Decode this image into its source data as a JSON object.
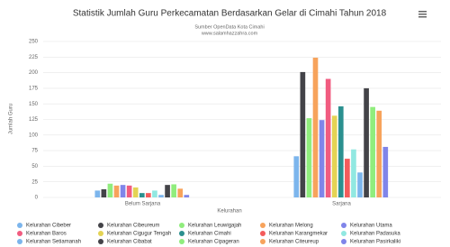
{
  "chart_data": {
    "type": "bar",
    "title": "Statistik Jumlah Guru Perkecamatan Berdasarkan Gelar di Cimahi Tahun 2018",
    "subtitle": [
      "Sumber OpenData Kota Cimahi",
      "www.salamhazzahra.com"
    ],
    "x_label": "Kelurahan",
    "y_label": "Jumlah Guru",
    "categories": [
      "Belum Sarjana",
      "Sarjana"
    ],
    "ylim": [
      0,
      250
    ],
    "yticks": [
      0,
      25,
      50,
      75,
      100,
      125,
      150,
      175,
      200,
      225,
      250
    ],
    "grid": true,
    "series": [
      {
        "name": "Kelurahan Cibeber",
        "color": "#7cb5ec",
        "values": [
          11,
          66
        ]
      },
      {
        "name": "Kelurahan Cibeureum",
        "color": "#434348",
        "values": [
          13,
          201
        ]
      },
      {
        "name": "Kelurahan Leuwigajah",
        "color": "#90ed7d",
        "values": [
          22,
          127
        ]
      },
      {
        "name": "Kelurahan Melong",
        "color": "#f7a35c",
        "values": [
          19,
          224
        ]
      },
      {
        "name": "Kelurahan Utama",
        "color": "#8085e9",
        "values": [
          20,
          124
        ]
      },
      {
        "name": "Kelurahan Baros",
        "color": "#f15c80",
        "values": [
          19,
          190
        ]
      },
      {
        "name": "Kelurahan Cigugur Tengah",
        "color": "#e4d354",
        "values": [
          16,
          131
        ]
      },
      {
        "name": "Kelurahan Cimahi",
        "color": "#2b908f",
        "values": [
          7,
          146
        ]
      },
      {
        "name": "Kelurahan Karangmekar",
        "color": "#f45b5b",
        "values": [
          7,
          62
        ]
      },
      {
        "name": "Kelurahan Padasuka",
        "color": "#91e8e1",
        "values": [
          11,
          77
        ]
      },
      {
        "name": "Kelurahan Setiamanah",
        "color": "#7cb5ec",
        "values": [
          4,
          40
        ]
      },
      {
        "name": "Kelurahan Cibabat",
        "color": "#434348",
        "values": [
          20,
          175
        ]
      },
      {
        "name": "Kelurahan Cipageran",
        "color": "#90ed7d",
        "values": [
          21,
          145
        ]
      },
      {
        "name": "Kelurahan Citeureup",
        "color": "#f7a35c",
        "values": [
          14,
          139
        ]
      },
      {
        "name": "Kelurahan Pasirkaliki",
        "color": "#8085e9",
        "values": [
          4,
          81
        ]
      }
    ]
  }
}
